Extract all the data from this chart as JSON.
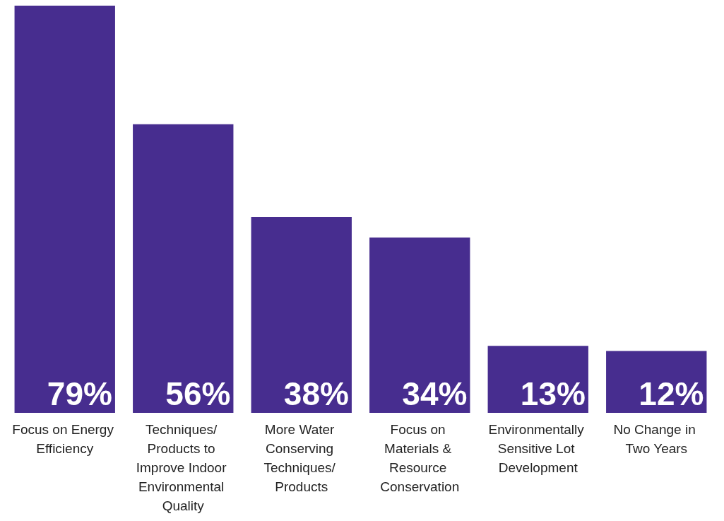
{
  "chart_data": {
    "type": "bar",
    "categories": [
      "Focus on Energy Efficiency",
      "Techniques/ Products to Improve Indoor Environmental Quality",
      "More Water Conserving Techniques/ Products",
      "Focus on Materials & Resource Conservation",
      "Environmentally Sensitive Lot Development",
      "No Change in Two Years"
    ],
    "values": [
      79,
      56,
      38,
      34,
      13,
      12
    ],
    "value_labels": [
      "79%",
      "56%",
      "38%",
      "34%",
      "13%",
      "12%"
    ],
    "color": "#472d8f",
    "grid": false
  }
}
